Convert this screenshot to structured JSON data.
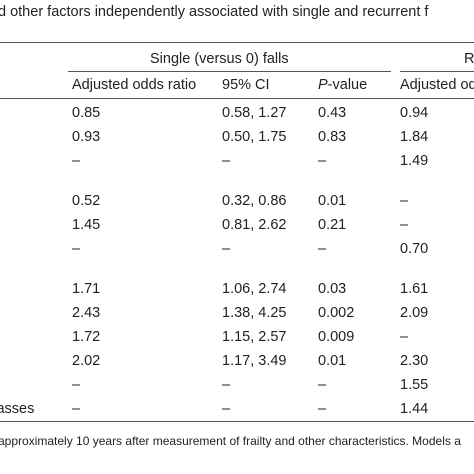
{
  "table": {
    "title": "d other factors independently associated with single and recurrent f",
    "header": {
      "group_single": "Single (versus 0) falls",
      "group_recurrent": "R",
      "col_or": "Adjusted odds ratio",
      "col_ci": "95% CI",
      "col_p_italic": "P",
      "col_p_rest": "-value",
      "col_or_recurrent": "Adjusted odds"
    },
    "rows": [
      {
        "label": "",
        "or": "0.85",
        "ci": "0.58, 1.27",
        "p": "0.43",
        "or2": "0.94"
      },
      {
        "label": "",
        "or": "0.93",
        "ci": "0.50, 1.75",
        "p": "0.83",
        "or2": "1.84"
      },
      {
        "label": "",
        "or": "–",
        "ci": "–",
        "p": "–",
        "or2": "1.49"
      },
      {
        "label": "",
        "or": "0.52",
        "ci": "0.32, 0.86",
        "p": "0.01",
        "or2": "–"
      },
      {
        "label": "",
        "or": "1.45",
        "ci": "0.81, 2.62",
        "p": "0.21",
        "or2": "–"
      },
      {
        "label": "",
        "or": "–",
        "ci": "–",
        "p": "–",
        "or2": "0.70"
      },
      {
        "label": "",
        "or": "1.71",
        "ci": "1.06, 2.74",
        "p": "0.03",
        "or2": "1.61"
      },
      {
        "label": "",
        "or": "2.43",
        "ci": "1.38, 4.25",
        "p": "0.002",
        "or2": "2.09"
      },
      {
        "label": "",
        "or": "1.72",
        "ci": "1.15, 2.57",
        "p": "0.009",
        "or2": "–"
      },
      {
        "label": "",
        "or": "2.02",
        "ci": "1.17, 3.49",
        "p": "0.01",
        "or2": "2.30"
      },
      {
        "label": "",
        "or": "–",
        "ci": "–",
        "p": "–",
        "or2": "1.55"
      },
      {
        "label": "classes",
        "or": "–",
        "ci": "–",
        "p": "–",
        "or2": "1.44"
      }
    ],
    "footnote": "approximately 10 years after measurement of frailty and other characteristics. Models a"
  }
}
